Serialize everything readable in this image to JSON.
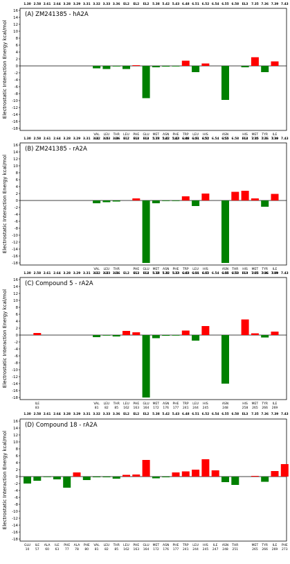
{
  "chart_data": {
    "type": "bar",
    "ylabel": "Electrostatic Interaction Energy kcal/mol",
    "ylim": [
      -18,
      16
    ],
    "yticks": [
      16,
      14,
      12,
      10,
      8,
      6,
      4,
      2,
      0,
      -2,
      -4,
      -6,
      -8,
      -10,
      -12,
      -14,
      -16,
      -18
    ],
    "grid": false,
    "colors": {
      "positive": "#ff0000",
      "negative": "#008000"
    },
    "generic_positions": [
      "1.30",
      "2.58",
      "2.61",
      "2.64",
      "3.28",
      "3.29",
      "3.31",
      "3.32",
      "3.33",
      "3.36",
      "EL2",
      "EL2",
      "EL2",
      "5.38",
      "5.42",
      "5.43",
      "6.48",
      "6.51",
      "6.52",
      "6.54",
      "6.55",
      "6.58",
      "EL3",
      "7.35",
      "7.36",
      "7.39",
      "7.43"
    ],
    "panels": [
      {
        "title": "(A) ZM241385 - hA2A",
        "residues": [
          {
            "slot": 7,
            "name": "VAL",
            "num": "84",
            "value": -0.7
          },
          {
            "slot": 8,
            "name": "LEU",
            "num": "85",
            "value": -0.9
          },
          {
            "slot": 9,
            "name": "THR",
            "num": "88",
            "value": -0.1
          },
          {
            "slot": 10,
            "name": "LEU",
            "num": "167",
            "value": -0.9
          },
          {
            "slot": 11,
            "name": "PHE",
            "num": "168",
            "value": 0.2
          },
          {
            "slot": 12,
            "name": "GLU",
            "num": "169",
            "value": -9.3
          },
          {
            "slot": 13,
            "name": "MET",
            "num": "177",
            "value": -0.4
          },
          {
            "slot": 14,
            "name": "ASN",
            "num": "181",
            "value": -0.2
          },
          {
            "slot": 15,
            "name": "PHE",
            "num": "182",
            "value": -0.1
          },
          {
            "slot": 16,
            "name": "TRP",
            "num": "246",
            "value": 1.5
          },
          {
            "slot": 17,
            "name": "LEU",
            "num": "249",
            "value": -1.8
          },
          {
            "slot": 18,
            "name": "HIS",
            "num": "250",
            "value": 0.7
          },
          {
            "slot": 20,
            "name": "ASN",
            "num": "253",
            "value": -9.8
          },
          {
            "slot": 22,
            "name": "HIS",
            "num": "264",
            "value": -0.4
          },
          {
            "slot": 23,
            "name": "MET",
            "num": "270",
            "value": 2.5
          },
          {
            "slot": 24,
            "name": "TYR",
            "num": "271",
            "value": -1.8
          },
          {
            "slot": 25,
            "name": "ILE",
            "num": "274",
            "value": 1.3
          }
        ]
      },
      {
        "title": "(B) ZM241385 - rA2A",
        "residues": [
          {
            "slot": 7,
            "name": "VAL",
            "num": "81",
            "value": -0.8
          },
          {
            "slot": 8,
            "name": "LEU",
            "num": "82",
            "value": -0.5
          },
          {
            "slot": 9,
            "name": "THR",
            "num": "85",
            "value": -0.3
          },
          {
            "slot": 11,
            "name": "PHE",
            "num": "163",
            "value": 0.6
          },
          {
            "slot": 12,
            "name": "GLU",
            "num": "164",
            "value": -18.0
          },
          {
            "slot": 13,
            "name": "MET",
            "num": "172",
            "value": -0.8
          },
          {
            "slot": 14,
            "name": "ASN",
            "num": "176",
            "value": -0.1
          },
          {
            "slot": 15,
            "name": "PHE",
            "num": "177",
            "value": -0.1
          },
          {
            "slot": 16,
            "name": "TRP",
            "num": "241",
            "value": 1.2
          },
          {
            "slot": 17,
            "name": "LEU",
            "num": "244",
            "value": -1.6
          },
          {
            "slot": 18,
            "name": "HIS",
            "num": "245",
            "value": 2.0
          },
          {
            "slot": 20,
            "name": "ASN",
            "num": "248",
            "value": -18.0
          },
          {
            "slot": 21,
            "name": "THR",
            "num": "251",
            "value": 2.5
          },
          {
            "slot": 22,
            "name": "HIS",
            "num": "259",
            "value": 2.8
          },
          {
            "slot": 23,
            "name": "MET",
            "num": "265",
            "value": 0.6
          },
          {
            "slot": 24,
            "name": "TYR",
            "num": "266",
            "value": -1.8
          },
          {
            "slot": 25,
            "name": "ILE",
            "num": "269",
            "value": 1.9
          }
        ]
      },
      {
        "title": "(C) Compound 5 - rA2A",
        "residues": [
          {
            "slot": 1,
            "name": "ILE",
            "num": "83",
            "value": 0.6
          },
          {
            "slot": 7,
            "name": "VAL",
            "num": "81",
            "value": -0.6
          },
          {
            "slot": 8,
            "name": "LEU",
            "num": "82",
            "value": -0.1
          },
          {
            "slot": 9,
            "name": "THR",
            "num": "85",
            "value": -0.4
          },
          {
            "slot": 10,
            "name": "LEU",
            "num": "162",
            "value": 1.2
          },
          {
            "slot": 11,
            "name": "PHE",
            "num": "163",
            "value": 0.8
          },
          {
            "slot": 12,
            "name": "GLU",
            "num": "164",
            "value": -18.0
          },
          {
            "slot": 13,
            "name": "MET",
            "num": "172",
            "value": -0.9
          },
          {
            "slot": 14,
            "name": "ASN",
            "num": "176",
            "value": -0.2
          },
          {
            "slot": 15,
            "name": "PHE",
            "num": "177",
            "value": -0.1
          },
          {
            "slot": 16,
            "name": "TRP",
            "num": "241",
            "value": 1.3
          },
          {
            "slot": 17,
            "name": "LEU",
            "num": "244",
            "value": -1.6
          },
          {
            "slot": 18,
            "name": "HIS",
            "num": "245",
            "value": 2.6
          },
          {
            "slot": 20,
            "name": "ASN",
            "num": "248",
            "value": -14.0
          },
          {
            "slot": 22,
            "name": "HIS",
            "num": "258",
            "value": 4.5
          },
          {
            "slot": 23,
            "name": "MET",
            "num": "265",
            "value": 0.5
          },
          {
            "slot": 24,
            "name": "TYR",
            "num": "266",
            "value": -0.7
          },
          {
            "slot": 25,
            "name": "ILE",
            "num": "269",
            "value": 1.0
          }
        ]
      },
      {
        "title": "(D) Compound 18 - rA2A",
        "residues": [
          {
            "slot": 0,
            "name": "GLU",
            "num": "10",
            "value": -2.0
          },
          {
            "slot": 1,
            "name": "ILE",
            "num": "57",
            "value": -1.2
          },
          {
            "slot": 2,
            "name": "ALA",
            "num": "60",
            "value": -0.1
          },
          {
            "slot": 3,
            "name": "ILE",
            "num": "63",
            "value": -0.8
          },
          {
            "slot": 4,
            "name": "PHE",
            "num": "77",
            "value": -3.2
          },
          {
            "slot": 5,
            "name": "ALA",
            "num": "78",
            "value": 1.2
          },
          {
            "slot": 6,
            "name": "PHE",
            "num": "80",
            "value": -1.0
          },
          {
            "slot": 7,
            "name": "VAL",
            "num": "81",
            "value": -0.2
          },
          {
            "slot": 8,
            "name": "LEU",
            "num": "82",
            "value": -0.2
          },
          {
            "slot": 9,
            "name": "THR",
            "num": "85",
            "value": -0.6
          },
          {
            "slot": 10,
            "name": "LEU",
            "num": "162",
            "value": 0.5
          },
          {
            "slot": 11,
            "name": "PHE",
            "num": "163",
            "value": 0.6
          },
          {
            "slot": 12,
            "name": "GLU",
            "num": "164",
            "value": 4.8
          },
          {
            "slot": 13,
            "name": "MET",
            "num": "172",
            "value": -0.5
          },
          {
            "slot": 14,
            "name": "ASN",
            "num": "176",
            "value": -0.2
          },
          {
            "slot": 15,
            "name": "PHE",
            "num": "177",
            "value": 1.2
          },
          {
            "slot": 16,
            "name": "TRP",
            "num": "241",
            "value": 1.5
          },
          {
            "slot": 17,
            "name": "LEU",
            "num": "244",
            "value": 2.0
          },
          {
            "slot": 18,
            "name": "HIS",
            "num": "245",
            "value": 5.0
          },
          {
            "slot": 19,
            "name": "ILE",
            "num": "247",
            "value": 1.8
          },
          {
            "slot": 20,
            "name": "ASN",
            "num": "248",
            "value": -1.6
          },
          {
            "slot": 21,
            "name": "THR",
            "num": "251",
            "value": -2.4
          },
          {
            "slot": 23,
            "name": "MET",
            "num": "265",
            "value": 0.2
          },
          {
            "slot": 24,
            "name": "TYR",
            "num": "266",
            "value": -1.5
          },
          {
            "slot": 25,
            "name": "ILE",
            "num": "269",
            "value": 1.6
          },
          {
            "slot": 26,
            "name": "PHE",
            "num": "273",
            "value": 3.6
          }
        ]
      }
    ]
  }
}
